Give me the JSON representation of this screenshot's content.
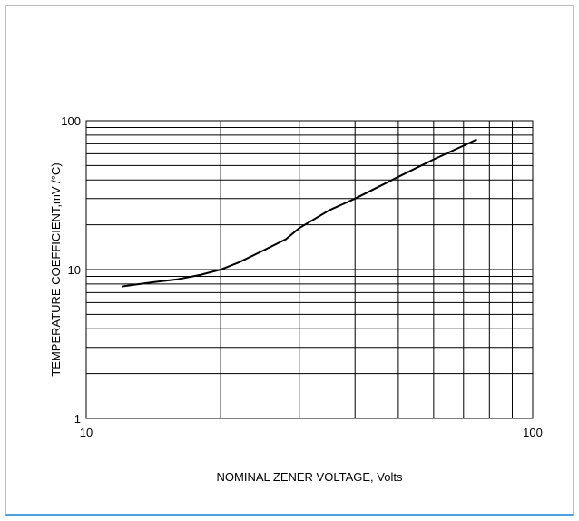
{
  "chart_data": {
    "type": "line",
    "xlabel": "NOMINAL ZENER VOLTAGE, Volts",
    "ylabel": "TEMPERATURE COEFFICIENT,mV /°C)",
    "x_scale": "log",
    "y_scale": "log",
    "xlim": [
      10,
      100
    ],
    "ylim": [
      1,
      100
    ],
    "x_tick_labels": [
      "10",
      "100"
    ],
    "y_tick_labels": [
      "1",
      "10",
      "100"
    ],
    "grid": true,
    "series": [
      {
        "x": [
          12,
          14,
          16,
          18,
          20,
          22,
          25,
          28,
          30,
          35,
          40,
          50,
          60,
          70,
          75
        ],
        "y": [
          7.7,
          8.2,
          8.6,
          9.2,
          10.0,
          11.2,
          13.5,
          16.0,
          19.0,
          25.0,
          30.0,
          42.0,
          55.0,
          68.0,
          75.0
        ]
      }
    ],
    "colors": {
      "line": "#000000",
      "grid": "#000000",
      "frame_border": "#bdbdbd",
      "frame_accent": "#4aa3df"
    }
  }
}
